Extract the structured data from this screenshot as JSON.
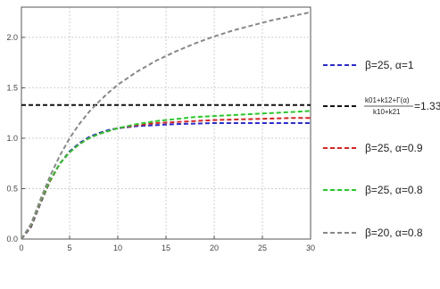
{
  "chart_data": {
    "type": "line",
    "title": "",
    "xlabel": "",
    "ylabel": "",
    "xlim": [
      0,
      30
    ],
    "ylim": [
      0,
      2.3
    ],
    "grid": true,
    "legend_position": "right",
    "x_ticks": [
      "0",
      "5",
      "10",
      "15",
      "20",
      "25",
      "30"
    ],
    "y_ticks": [
      "0.0",
      "0.5",
      "1.0",
      "1.5",
      "2.0"
    ],
    "x": [
      0,
      1,
      2,
      3,
      4,
      5,
      6,
      7,
      8,
      9,
      10,
      12,
      14,
      16,
      18,
      20,
      22,
      24,
      26,
      28,
      30
    ],
    "series": [
      {
        "name": "β=25, α=1",
        "color": "#2a2ad8",
        "values": [
          0,
          0.12,
          0.36,
          0.58,
          0.75,
          0.87,
          0.95,
          1.01,
          1.05,
          1.08,
          1.1,
          1.12,
          1.13,
          1.14,
          1.145,
          1.15,
          1.15,
          1.15,
          1.15,
          1.15,
          1.15
        ]
      },
      {
        "name": "k01+k12+Γ(α)/k10+k21=1.33",
        "color": "#111111",
        "values": [
          1.33,
          1.33,
          1.33,
          1.33,
          1.33,
          1.33,
          1.33,
          1.33,
          1.33,
          1.33,
          1.33,
          1.33,
          1.33,
          1.33,
          1.33,
          1.33,
          1.33,
          1.33,
          1.33,
          1.33,
          1.33
        ]
      },
      {
        "name": "β=25, α=0.9",
        "color": "#e02020",
        "values": [
          0,
          0.13,
          0.37,
          0.58,
          0.75,
          0.86,
          0.94,
          1.0,
          1.04,
          1.07,
          1.1,
          1.13,
          1.15,
          1.16,
          1.17,
          1.18,
          1.185,
          1.19,
          1.195,
          1.2,
          1.2
        ]
      },
      {
        "name": "β=25, α=0.8",
        "color": "#22cc22",
        "values": [
          0,
          0.14,
          0.38,
          0.59,
          0.75,
          0.86,
          0.94,
          1.0,
          1.04,
          1.07,
          1.1,
          1.14,
          1.17,
          1.19,
          1.21,
          1.22,
          1.23,
          1.24,
          1.25,
          1.26,
          1.27
        ]
      },
      {
        "name": "β=20, α=0.8",
        "color": "#888888",
        "values": [
          0,
          0.15,
          0.4,
          0.63,
          0.83,
          1.0,
          1.14,
          1.26,
          1.36,
          1.45,
          1.53,
          1.66,
          1.77,
          1.86,
          1.94,
          2.01,
          2.07,
          2.12,
          2.17,
          2.21,
          2.25
        ]
      }
    ],
    "legend": [
      {
        "kind": "text",
        "parts": [
          "β=25, α=1"
        ]
      },
      {
        "kind": "fraction",
        "numerator": "k01+k12+Γ(α)",
        "denominator": "k10+k21",
        "suffix": "=1.33"
      },
      {
        "kind": "text",
        "parts": [
          "β=25, α=0.9"
        ]
      },
      {
        "kind": "text",
        "parts": [
          "β=25, α=0.8"
        ]
      },
      {
        "kind": "text",
        "parts": [
          "β=20, α=0.8"
        ]
      }
    ]
  }
}
